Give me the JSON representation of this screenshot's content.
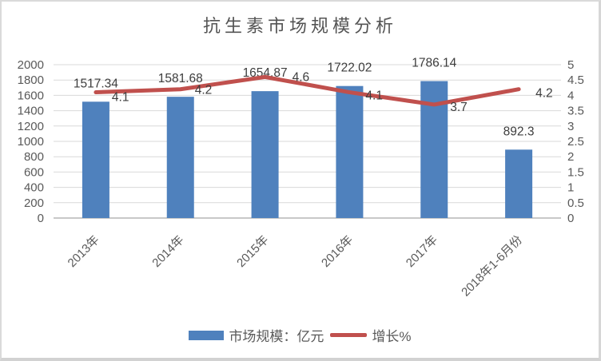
{
  "chart_data": {
    "type": "combo-bar-line",
    "title": "抗生素市场规模分析",
    "categories": [
      "2013年",
      "2014年",
      "2015年",
      "2016年",
      "2017年",
      "2018年1-6月份"
    ],
    "series": [
      {
        "name": "市场规模：亿元",
        "chart_type": "bar",
        "axis": "left",
        "color": "#4f81bd",
        "values": [
          1517.34,
          1581.68,
          1654.87,
          1722.02,
          1786.14,
          892.3
        ],
        "data_labels": [
          "1517.34",
          "1581.68",
          "1654.87",
          "1722.02",
          "1786.14",
          "892.3"
        ]
      },
      {
        "name": "增长%",
        "chart_type": "line",
        "axis": "right",
        "color": "#c0504d",
        "values": [
          4.1,
          4.2,
          4.6,
          4.1,
          3.7,
          4.2
        ],
        "data_labels": [
          "4.1",
          "4.2",
          "4.6",
          "4.1",
          "3.7",
          "4.2"
        ],
        "label_offsets": [
          {
            "dx": 20,
            "dy": 11
          },
          {
            "dx": 18,
            "dy": 6
          },
          {
            "dx": 34,
            "dy": 5
          },
          {
            "dx": 20,
            "dy": 9
          },
          {
            "dx": 20,
            "dy": 8
          },
          {
            "dx": 21,
            "dy": 10
          }
        ]
      }
    ],
    "left_axis": {
      "min": 0,
      "max": 2000,
      "step": 200,
      "ticks": [
        "0",
        "200",
        "400",
        "600",
        "800",
        "1000",
        "1200",
        "1400",
        "1600",
        "1800",
        "2000"
      ]
    },
    "right_axis": {
      "min": 0,
      "max": 5,
      "step": 0.5,
      "ticks": [
        "0",
        "0.5",
        "1",
        "1.5",
        "2",
        "2.5",
        "3",
        "3.5",
        "4",
        "4.5",
        "5"
      ]
    },
    "grid": true,
    "legend_position": "bottom",
    "x_labels_rotation_deg": -45,
    "grid_color": "#d9d9d9",
    "baseline_color": "#c8c8c8"
  }
}
